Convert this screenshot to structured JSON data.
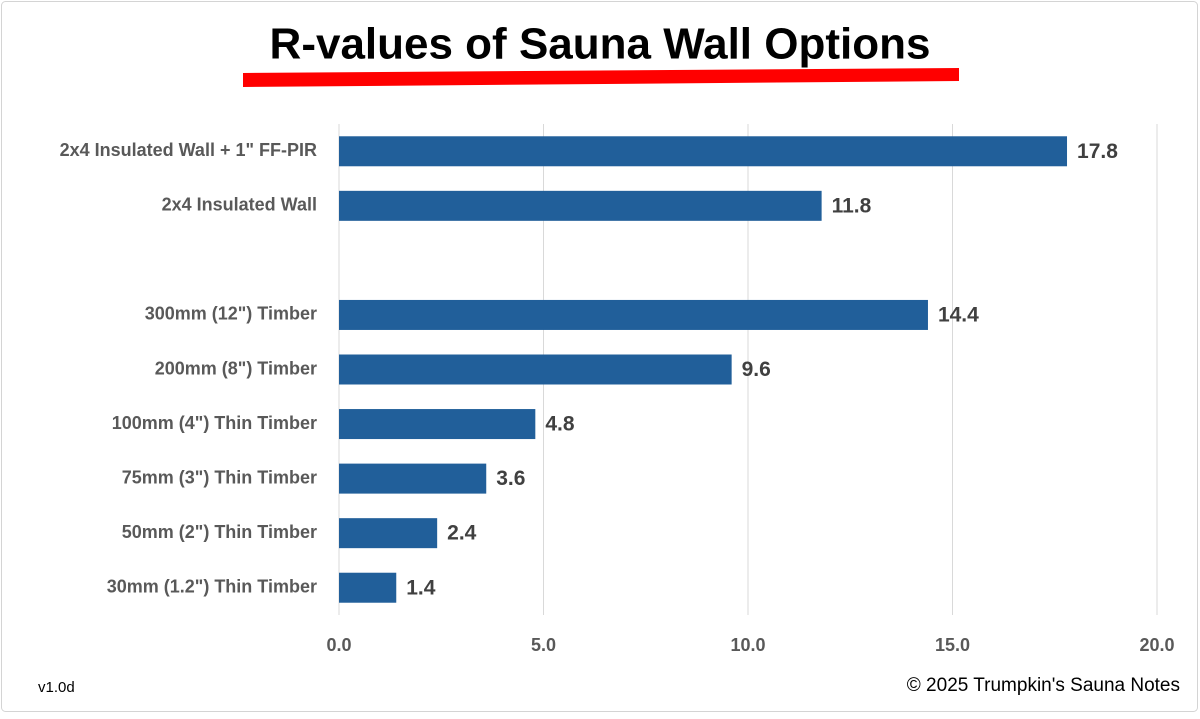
{
  "chart_data": {
    "type": "bar",
    "orientation": "horizontal",
    "title": "R-values of Sauna Wall Options",
    "categories": [
      "2x4 Insulated Wall + 1\" FF-PIR",
      "2x4 Insulated Wall",
      null,
      "300mm (12\") Timber",
      "200mm (8\") Timber",
      "100mm (4\") Thin Timber",
      "75mm (3\") Thin Timber",
      "50mm (2\") Thin Timber",
      "30mm (1.2\") Thin Timber"
    ],
    "values": [
      17.8,
      11.8,
      null,
      14.4,
      9.6,
      4.8,
      3.6,
      2.4,
      1.4
    ],
    "color": "#215f9a",
    "xlim": [
      0,
      20
    ],
    "xticks": [
      {
        "value": 0,
        "label": "0.0"
      },
      {
        "value": 5,
        "label": "5.0"
      },
      {
        "value": 10,
        "label": "10.0"
      },
      {
        "value": 15,
        "label": "15.0"
      },
      {
        "value": 20,
        "label": "20.0"
      }
    ],
    "grid": true,
    "version": "v1.0d",
    "copyright": "© 2025 Trumpkin's Sauna Notes"
  }
}
